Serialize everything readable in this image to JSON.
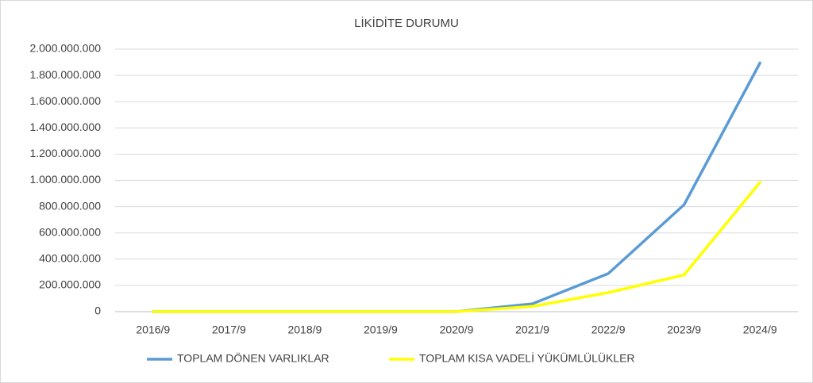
{
  "chart_data": {
    "type": "line",
    "title": "LİKİDİTE DURUMU",
    "categories": [
      "2016/9",
      "2017/9",
      "2018/9",
      "2019/9",
      "2020/9",
      "2021/9",
      "2022/9",
      "2023/9",
      "2024/9"
    ],
    "series": [
      {
        "name": "TOPLAM DÖNEN VARLIKLAR",
        "color": "#5b9bd5",
        "values": [
          0,
          0,
          0,
          0,
          0,
          60000000,
          290000000,
          815000000,
          1895000000
        ]
      },
      {
        "name": "TOPLAM KISA VADELİ YÜKÜMLÜLÜKLER",
        "color": "#ffff00",
        "values": [
          0,
          0,
          0,
          0,
          0,
          40000000,
          145000000,
          280000000,
          985000000
        ]
      }
    ],
    "ylim": [
      0,
      2000000000
    ],
    "yticks": [
      0,
      {
        "value": 200000000,
        "label": "200.000.000"
      },
      {
        "value": 400000000,
        "label": "400.000.000"
      },
      {
        "value": 600000000,
        "label": "600.000.000"
      },
      {
        "value": 800000000,
        "label": "800.000.000"
      },
      {
        "value": 1000000000,
        "label": "1.000.000.000"
      },
      {
        "value": 1200000000,
        "label": "1.200.000.000"
      },
      {
        "value": 1400000000,
        "label": "1.400.000.000"
      },
      {
        "value": 1600000000,
        "label": "1.600.000.000"
      },
      {
        "value": 1800000000,
        "label": "1.800.000.000"
      },
      {
        "value": 2000000000,
        "label": "2.000.000.000"
      }
    ],
    "grid": true,
    "legend": "bottom"
  }
}
